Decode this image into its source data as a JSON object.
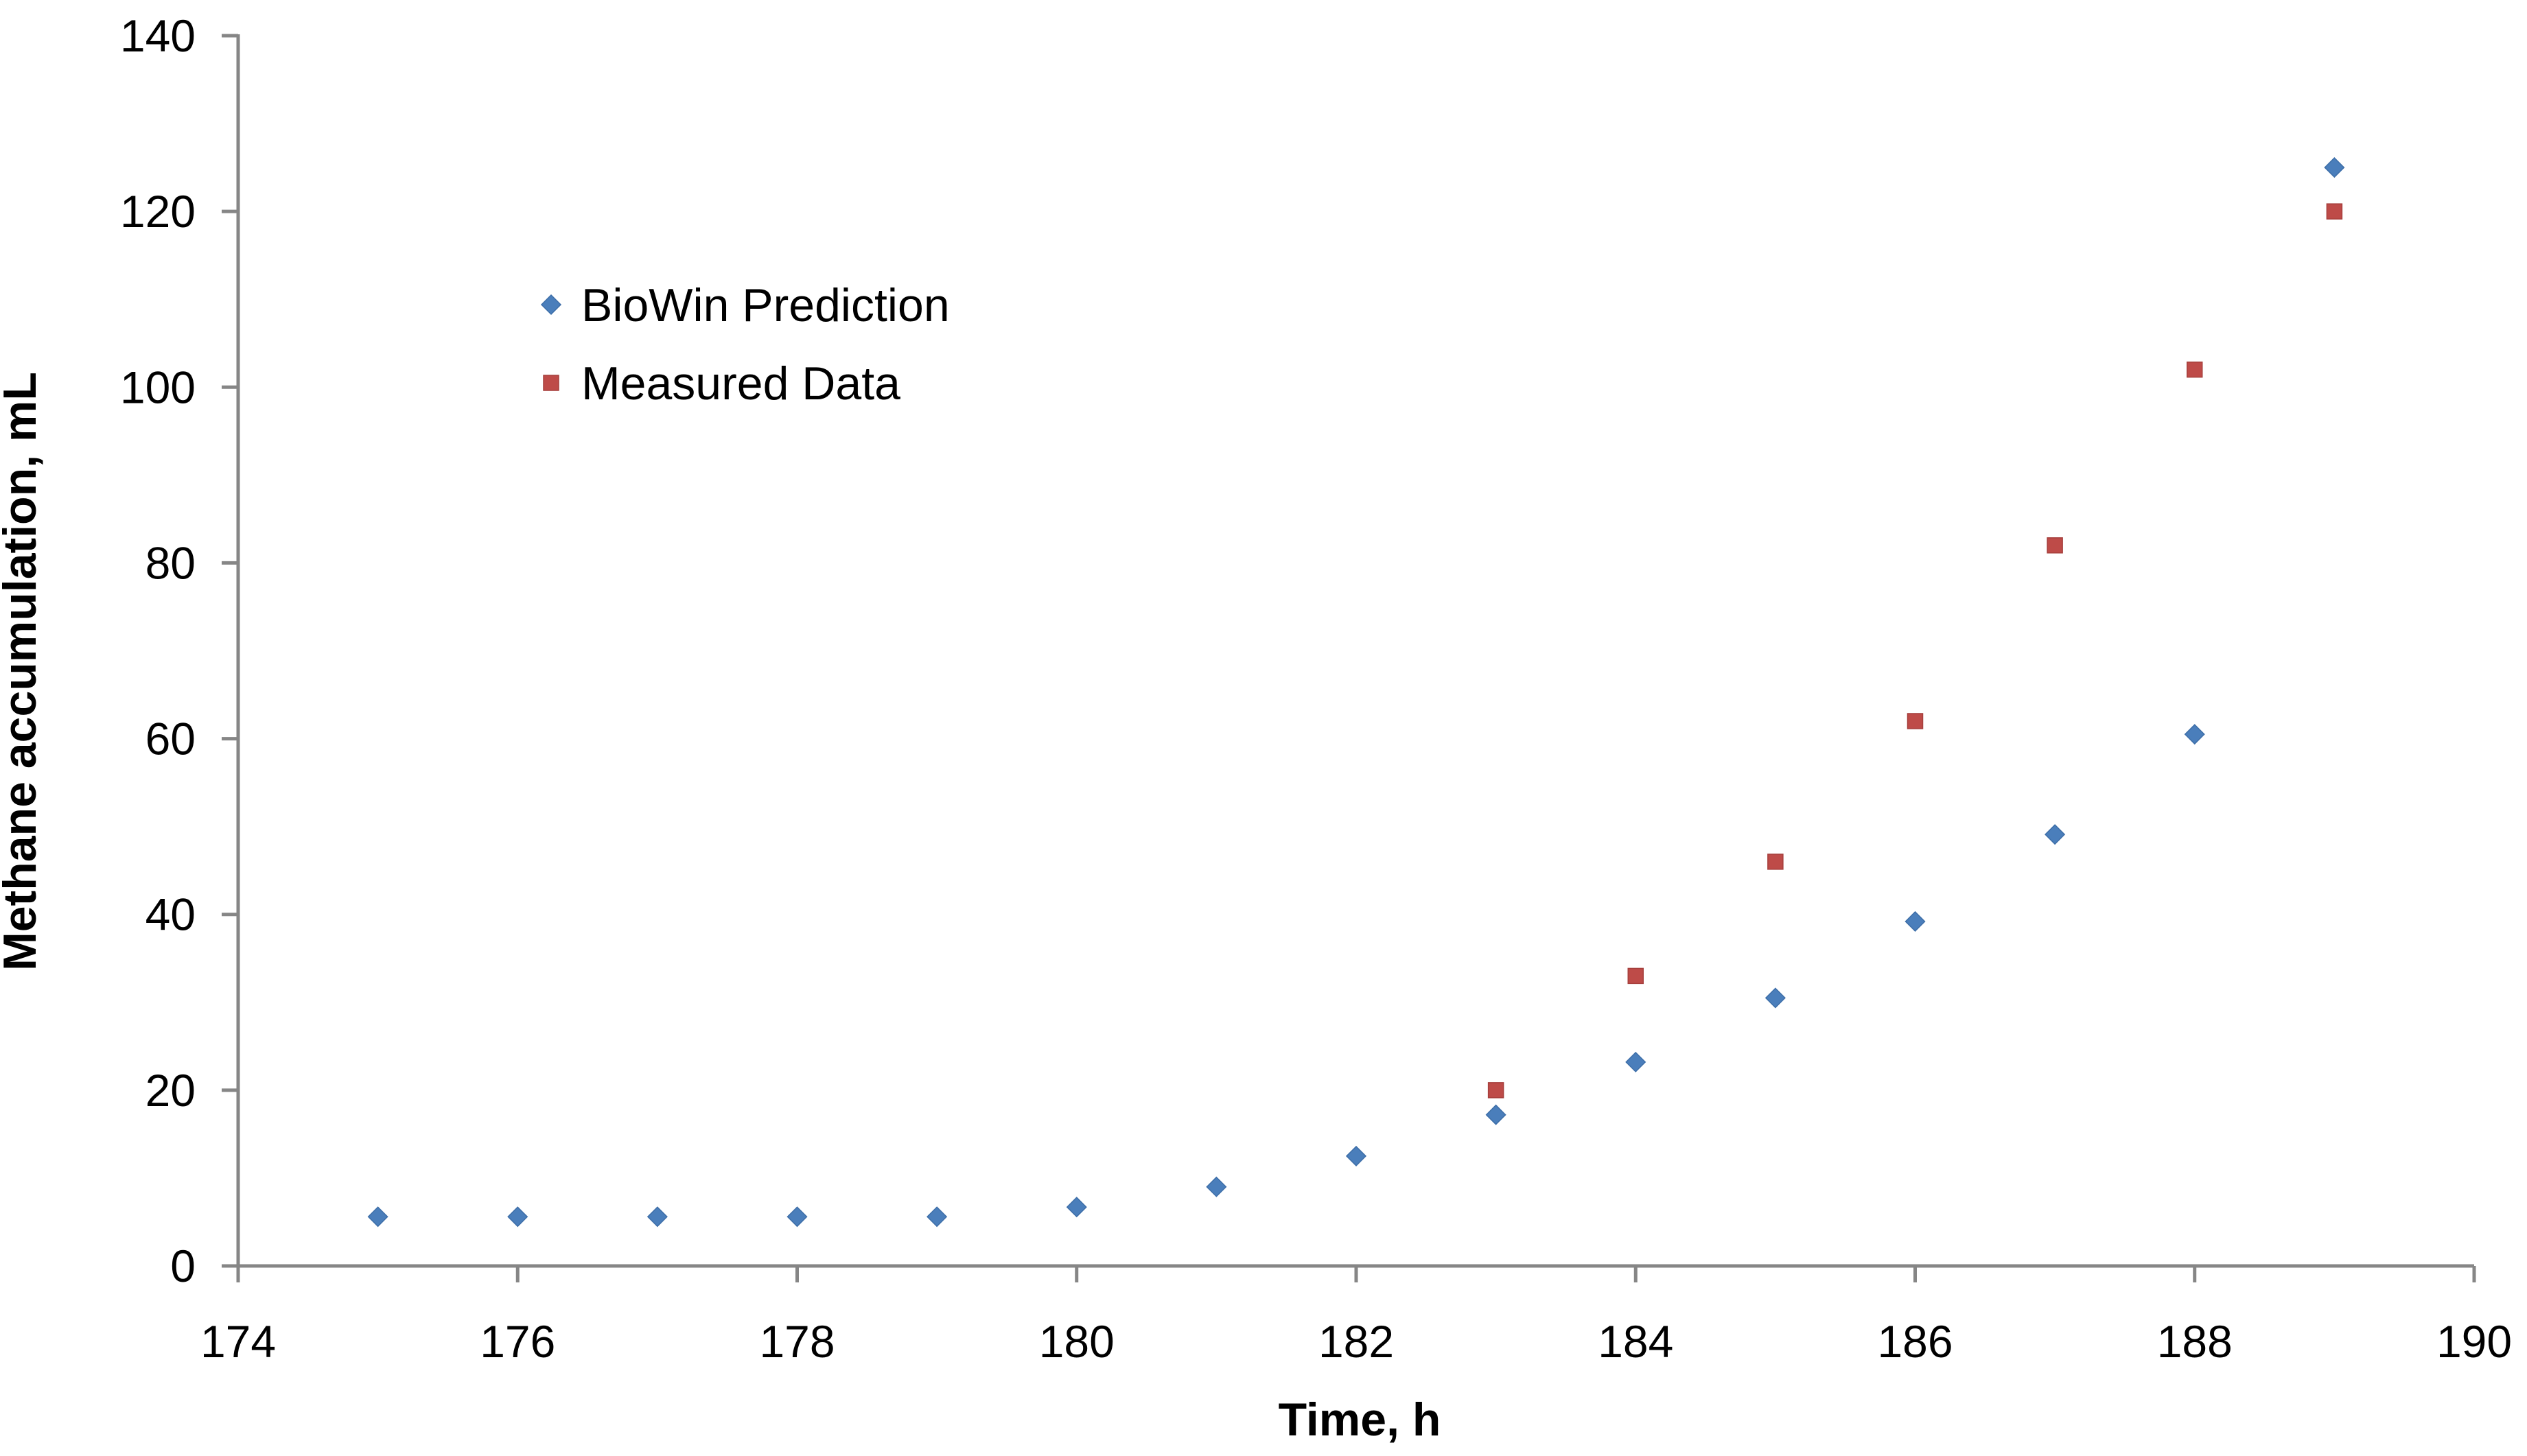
{
  "chart_data": {
    "type": "scatter",
    "xlabel": "Time, h",
    "ylabel": "Methane accumulation, mL",
    "xlim": [
      174,
      190
    ],
    "ylim": [
      0,
      140
    ],
    "x_ticks": [
      174,
      176,
      178,
      180,
      182,
      184,
      186,
      188,
      190
    ],
    "y_ticks": [
      0,
      20,
      40,
      60,
      80,
      100,
      120,
      140
    ],
    "grid": false,
    "legend_position": "upper-left",
    "series": [
      {
        "name": "BioWin Prediction",
        "marker": "diamond",
        "color": "#4a7ebb",
        "x": [
          175,
          176,
          177,
          178,
          179,
          180,
          181,
          182,
          183,
          184,
          185,
          186,
          187,
          188,
          189
        ],
        "y": [
          5.6,
          5.6,
          5.6,
          5.6,
          5.6,
          6.7,
          9.0,
          12.5,
          17.2,
          23.2,
          30.5,
          39.2,
          49.1,
          60.5,
          125.0
        ]
      },
      {
        "name": "Measured Data",
        "marker": "square",
        "color": "#be4b48",
        "x": [
          183,
          184,
          185,
          186,
          187,
          188,
          189
        ],
        "y": [
          20.0,
          33.0,
          46.0,
          62.0,
          82.0,
          102.0,
          120.0
        ]
      }
    ]
  }
}
